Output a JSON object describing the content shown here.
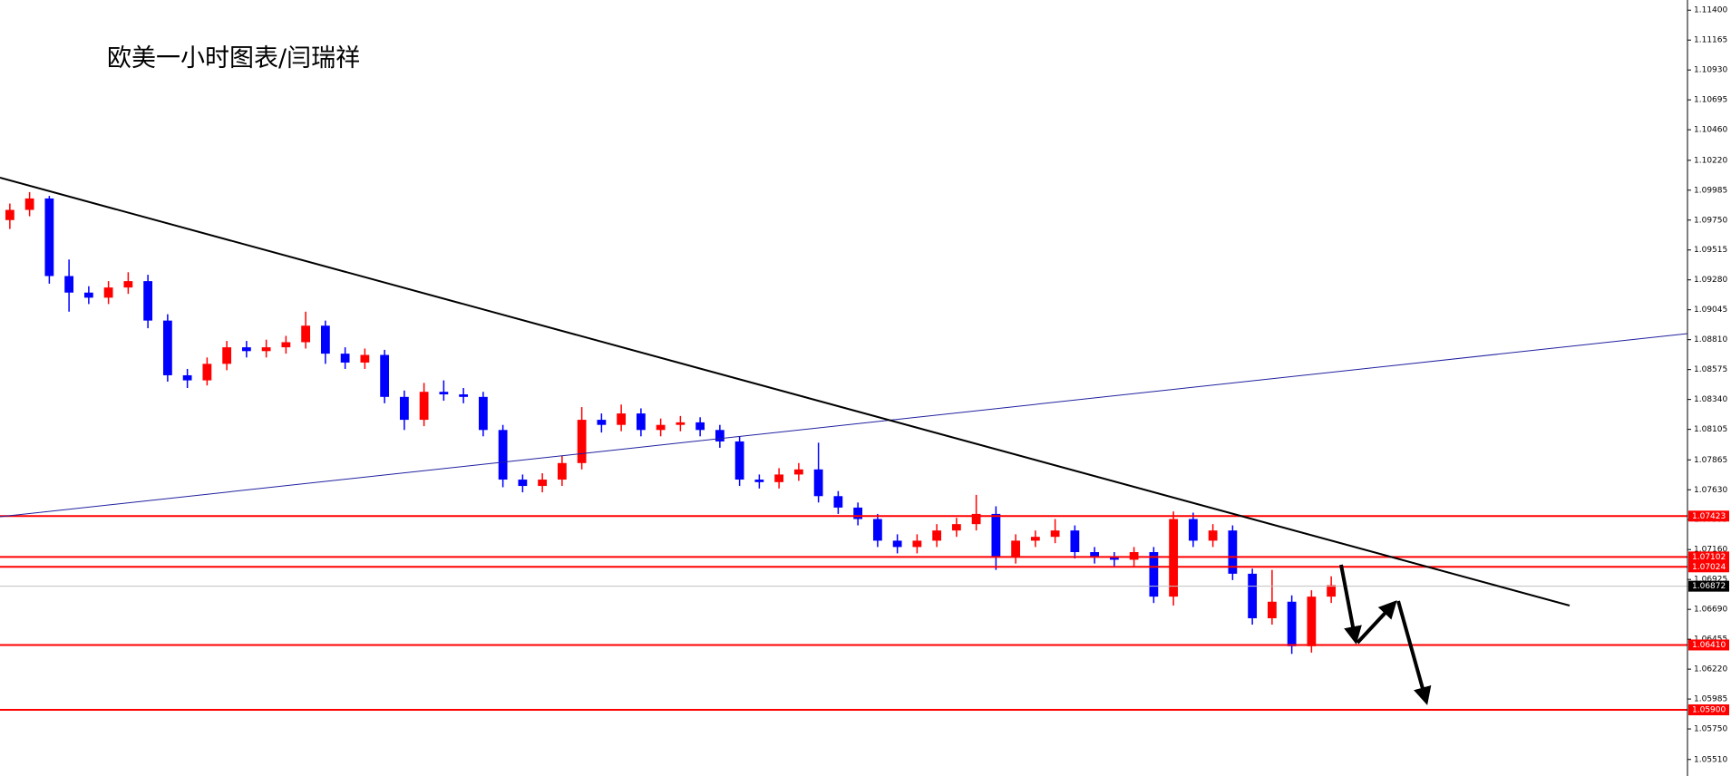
{
  "chart_data": {
    "type": "candlestick",
    "title": "欧美一小时图表/闫瑞祥",
    "open": [
      1.0975,
      1.0983,
      1.0992,
      1.0931,
      1.0918,
      1.0914,
      1.0922,
      1.0927,
      1.0896,
      1.0853,
      1.0849,
      1.0862,
      1.0875,
      1.0872,
      1.0875,
      1.0879,
      1.0892,
      1.087,
      1.0863,
      1.0869,
      1.0836,
      1.0818,
      1.084,
      1.0838,
      1.0836,
      1.081,
      1.0771,
      1.0766,
      1.0771,
      1.0784,
      1.0818,
      1.0814,
      1.0823,
      1.081,
      1.0814,
      1.0816,
      1.081,
      1.0801,
      1.0771,
      1.0769,
      1.0775,
      1.0779,
      1.0758,
      1.0749,
      1.074,
      1.0723,
      1.0718,
      1.0723,
      1.0731,
      1.0736,
      1.0744,
      1.071,
      1.0723,
      1.0726,
      1.0731,
      1.0714,
      1.071,
      1.0708,
      1.0714,
      1.0679,
      1.074,
      1.0723,
      1.0731,
      1.0697,
      1.0662,
      1.0675,
      1.064,
      1.0679
    ],
    "high": [
      1.0988,
      1.0997,
      1.0994,
      1.0944,
      1.0923,
      1.0927,
      1.0934,
      1.0932,
      1.0901,
      1.0858,
      1.0867,
      1.088,
      1.088,
      1.0881,
      1.0884,
      1.0903,
      1.0896,
      1.0875,
      1.0874,
      1.0873,
      1.0841,
      1.0847,
      1.0849,
      1.0843,
      1.084,
      1.0814,
      1.0775,
      1.0776,
      1.079,
      1.0828,
      1.0823,
      1.083,
      1.0827,
      1.0819,
      1.0821,
      1.082,
      1.0814,
      1.0805,
      1.0775,
      1.078,
      1.0784,
      1.08,
      1.0762,
      1.0753,
      1.0744,
      1.0728,
      1.0728,
      1.0736,
      1.0741,
      1.0759,
      1.075,
      1.0728,
      1.0731,
      1.074,
      1.0735,
      1.0718,
      1.0714,
      1.0718,
      1.0718,
      1.0746,
      1.0745,
      1.0736,
      1.0735,
      1.0701,
      1.07,
      1.068,
      1.0684,
      1.0695
    ],
    "low": [
      1.0968,
      1.0978,
      1.0925,
      1.0903,
      1.0909,
      1.0909,
      1.0917,
      1.089,
      1.0848,
      1.0843,
      1.0845,
      1.0857,
      1.0867,
      1.0867,
      1.087,
      1.0874,
      1.0862,
      1.0858,
      1.0858,
      1.0831,
      1.081,
      1.0813,
      1.0833,
      1.0831,
      1.0805,
      1.0765,
      1.0761,
      1.0761,
      1.0766,
      1.0779,
      1.0808,
      1.0809,
      1.0805,
      1.0805,
      1.0809,
      1.0805,
      1.0796,
      1.0766,
      1.0764,
      1.0764,
      1.077,
      1.0753,
      1.0744,
      1.0735,
      1.0718,
      1.0713,
      1.0713,
      1.0718,
      1.0726,
      1.0731,
      1.07,
      1.0705,
      1.0718,
      1.0721,
      1.0709,
      1.0705,
      1.0703,
      1.0703,
      1.0674,
      1.0672,
      1.0718,
      1.0718,
      1.0692,
      1.0657,
      1.0657,
      1.0634,
      1.0635,
      1.0674
    ],
    "close": [
      1.0983,
      1.0992,
      1.0931,
      1.0918,
      1.0914,
      1.0922,
      1.0927,
      1.0896,
      1.0853,
      1.0849,
      1.0862,
      1.0875,
      1.0872,
      1.0875,
      1.0879,
      1.0892,
      1.087,
      1.0863,
      1.0869,
      1.0836,
      1.0818,
      1.084,
      1.0838,
      1.0836,
      1.081,
      1.0771,
      1.0766,
      1.0771,
      1.0784,
      1.0818,
      1.0814,
      1.0823,
      1.081,
      1.0814,
      1.0816,
      1.081,
      1.0801,
      1.0771,
      1.0769,
      1.0775,
      1.0779,
      1.0758,
      1.0749,
      1.074,
      1.0723,
      1.0718,
      1.0723,
      1.0731,
      1.0736,
      1.0744,
      1.071,
      1.0723,
      1.0726,
      1.0731,
      1.0714,
      1.071,
      1.0708,
      1.0714,
      1.0679,
      1.074,
      1.0723,
      1.0731,
      1.0697,
      1.0662,
      1.0675,
      1.064,
      1.0679,
      1.0688
    ],
    "up_color": "#ff0000",
    "down_color": "#0000ff",
    "ylim": [
      1.0538,
      1.1148
    ],
    "yticks": [
      {
        "value": 1.114,
        "label": "1.11400"
      },
      1.11165,
      {
        "value": 1.1093,
        "label": "1.10930"
      },
      1.10695,
      {
        "value": 1.1046,
        "label": "1.10460"
      },
      {
        "value": 1.1022,
        "label": "1.10220"
      },
      1.09985,
      {
        "value": 1.0975,
        "label": "1.09750"
      },
      1.09515,
      {
        "value": 1.0928,
        "label": "1.09280"
      },
      1.09045,
      {
        "value": 1.0881,
        "label": "1.08810"
      },
      1.08575,
      {
        "value": 1.0834,
        "label": "1.08340"
      },
      1.08105,
      1.07865,
      {
        "value": 1.0763,
        "label": "1.07630"
      },
      1.07395,
      {
        "value": 1.0716,
        "label": "1.07160"
      },
      1.06925,
      {
        "value": 1.0669,
        "label": "1.06690"
      },
      1.06455,
      {
        "value": 1.0622,
        "label": "1.06220"
      },
      1.05985,
      {
        "value": 1.0575,
        "label": "1.05750"
      },
      {
        "value": 1.0551,
        "label": "1.05510"
      }
    ],
    "levels": [
      {
        "price": 1.07423,
        "color": "#ff0000"
      },
      {
        "price": 1.07102,
        "color": "#ff0000"
      },
      {
        "price": 1.07024,
        "color": "#ff0000"
      },
      {
        "price": {
          "value": 1.0641,
          "label": "1.06410"
        },
        "color": "#ff0000"
      },
      {
        "price": {
          "value": 1.059,
          "label": "1.05900"
        },
        "color": "#ff0000"
      }
    ],
    "last_price": 1.06872
  }
}
